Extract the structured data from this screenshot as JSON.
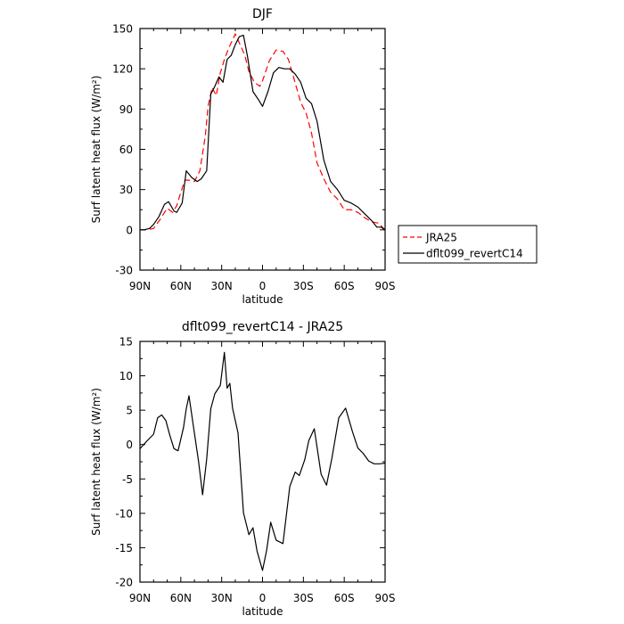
{
  "chart_data": [
    {
      "type": "line",
      "title": "DJF",
      "xlabel": "latitude",
      "ylabel": "Surf latent heat flux (W/m²)",
      "x_ticks": [
        90,
        60,
        30,
        0,
        -30,
        -60,
        -90
      ],
      "x_tick_labels": [
        "90N",
        "60N",
        "30N",
        "0",
        "30S",
        "60S",
        "90S"
      ],
      "xlim": [
        90,
        -90
      ],
      "ylim": [
        -30,
        150
      ],
      "y_ticks": [
        -30,
        0,
        30,
        60,
        90,
        120,
        150
      ],
      "y_tick_labels": [
        "-30",
        "0",
        "30",
        "60",
        "90",
        "120",
        "150"
      ],
      "legend": "right",
      "series": [
        {
          "name": "JRA25",
          "color": "#ff0000",
          "dash": "dashed",
          "x": [
            90,
            85,
            80,
            75,
            72,
            70,
            66,
            63,
            60,
            57,
            54,
            50,
            46,
            42,
            40,
            37,
            34,
            31,
            28,
            25,
            20,
            16,
            13,
            10,
            6,
            2,
            0,
            -5,
            -10,
            -15,
            -19,
            -23,
            -28,
            -32,
            -36,
            -40,
            -45,
            -50,
            -55,
            -60,
            -65,
            -70,
            -75,
            -80,
            -85,
            -90
          ],
          "values": [
            0,
            0,
            1,
            8,
            13,
            16,
            13,
            18,
            28,
            37,
            37,
            36,
            44,
            70,
            92,
            106,
            100,
            117,
            127,
            135,
            146,
            137,
            130,
            118,
            110,
            107,
            111,
            126,
            134,
            133,
            127,
            113,
            95,
            87,
            72,
            50,
            38,
            28,
            23,
            15,
            15,
            13,
            9,
            6,
            5,
            0
          ]
        },
        {
          "name": "dflt099_revertC14",
          "color": "#000000",
          "dash": "solid",
          "x": [
            90,
            87,
            83,
            80,
            76,
            72,
            69,
            65,
            63,
            59,
            56,
            52,
            48,
            45,
            41,
            38,
            35,
            32,
            29,
            26,
            23,
            20,
            17,
            14,
            11,
            7,
            3,
            0,
            -4,
            -8,
            -12,
            -16,
            -20,
            -24,
            -28,
            -32,
            -36,
            -40,
            -45,
            -50,
            -55,
            -60,
            -65,
            -70,
            -75,
            -80,
            -84,
            -87,
            -90
          ],
          "values": [
            0,
            0,
            1,
            4,
            10,
            19,
            21,
            14,
            13,
            20,
            44,
            39,
            36,
            38,
            44,
            101,
            107,
            114,
            110,
            127,
            130,
            138,
            144,
            145,
            129,
            103,
            97,
            92,
            103,
            117,
            121,
            120,
            120,
            116,
            110,
            98,
            94,
            81,
            52,
            36,
            30,
            22,
            20,
            17,
            12,
            7,
            2,
            2,
            0
          ]
        }
      ]
    },
    {
      "type": "line",
      "title": "dflt099_revertC14 - JRA25",
      "xlabel": "latitude",
      "ylabel": "Surf latent heat flux (W/m²)",
      "x_ticks": [
        90,
        60,
        30,
        0,
        -30,
        -60,
        -90
      ],
      "x_tick_labels": [
        "90N",
        "60N",
        "30N",
        "0",
        "30S",
        "60S",
        "90S"
      ],
      "xlim": [
        90,
        -90
      ],
      "ylim": [
        -20,
        15
      ],
      "y_ticks": [
        -20,
        -15,
        -10,
        -5,
        0,
        5,
        10,
        15
      ],
      "y_tick_labels": [
        "-20",
        "-15",
        "-10",
        "-5",
        "0",
        "5",
        "10",
        "15"
      ],
      "series": [
        {
          "name": "",
          "color": "#000000",
          "dash": "solid",
          "x": [
            90,
            85,
            80,
            77,
            74,
            71,
            68,
            65,
            62,
            58,
            56,
            54,
            51,
            47,
            44,
            41,
            38,
            35,
            31,
            28,
            26,
            24,
            22,
            18,
            14,
            10,
            7,
            4,
            0,
            -3,
            -6,
            -10,
            -15,
            -20,
            -24,
            -27,
            -31,
            -34,
            -38,
            -43,
            -47,
            -51,
            -56,
            -61,
            -66,
            -70,
            -74,
            -78,
            -82,
            -86,
            -90
          ],
          "values": [
            -0.6,
            0.5,
            1.5,
            3.9,
            4.3,
            3.5,
            1.3,
            -0.6,
            -0.9,
            2.5,
            5.2,
            7.1,
            3.0,
            -2.4,
            -7.3,
            -2.1,
            5.2,
            7.4,
            8.6,
            13.4,
            8.2,
            8.9,
            5.3,
            1.7,
            -9.9,
            -13.1,
            -12.1,
            -15.5,
            -18.3,
            -15.4,
            -11.3,
            -13.9,
            -14.4,
            -6.1,
            -4.0,
            -4.5,
            -2.2,
            0.6,
            2.3,
            -4.3,
            -5.9,
            -1.9,
            3.9,
            5.3,
            1.9,
            -0.5,
            -1.3,
            -2.4,
            -2.8,
            -2.8,
            -2.7
          ]
        }
      ]
    }
  ],
  "legend_items": [
    {
      "name": "JRA25",
      "color": "#ff0000",
      "dash": "dashed"
    },
    {
      "name": "dflt099_revertC14",
      "color": "#000000",
      "dash": "solid"
    }
  ]
}
